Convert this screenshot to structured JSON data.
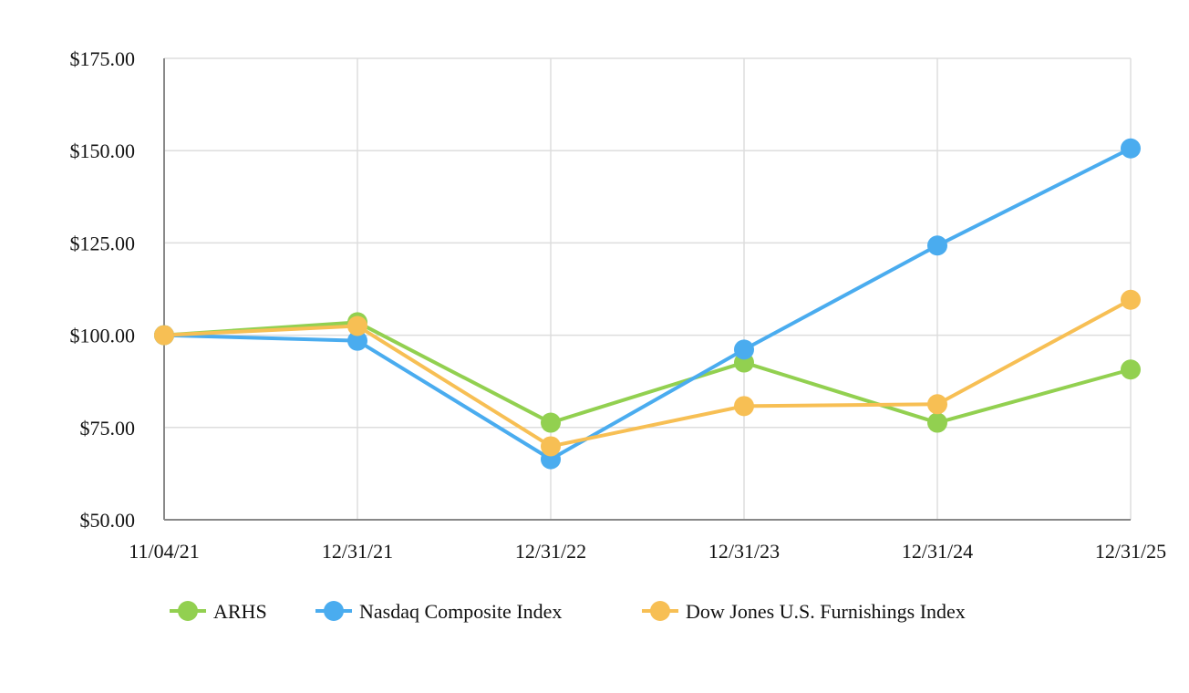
{
  "chart_data": {
    "type": "line",
    "title": "",
    "xlabel": "",
    "ylabel": "",
    "categories": [
      "11/04/21",
      "12/31/21",
      "12/31/22",
      "12/31/23",
      "12/31/24",
      "12/31/25"
    ],
    "ylim": [
      50,
      175
    ],
    "yticks": [
      50,
      75,
      100,
      125,
      150,
      175
    ],
    "ytick_labels": [
      "$50.00",
      "$75.00",
      "$100.00",
      "$125.00",
      "$150.00",
      "$175.00"
    ],
    "grid": true,
    "legend_position": "bottom",
    "series": [
      {
        "name": "ARHS",
        "color": "#92d050",
        "values": [
          100.0,
          103.5,
          76.3,
          92.6,
          76.3,
          90.7
        ]
      },
      {
        "name": "Nasdaq Composite Index",
        "color": "#4aacef",
        "values": [
          100.0,
          98.5,
          66.4,
          96.1,
          124.3,
          150.6
        ]
      },
      {
        "name": "Dow Jones U.S. Furnishings Index",
        "color": "#f7bf54",
        "values": [
          100.0,
          102.5,
          69.9,
          80.8,
          81.3,
          109.6
        ]
      }
    ]
  }
}
